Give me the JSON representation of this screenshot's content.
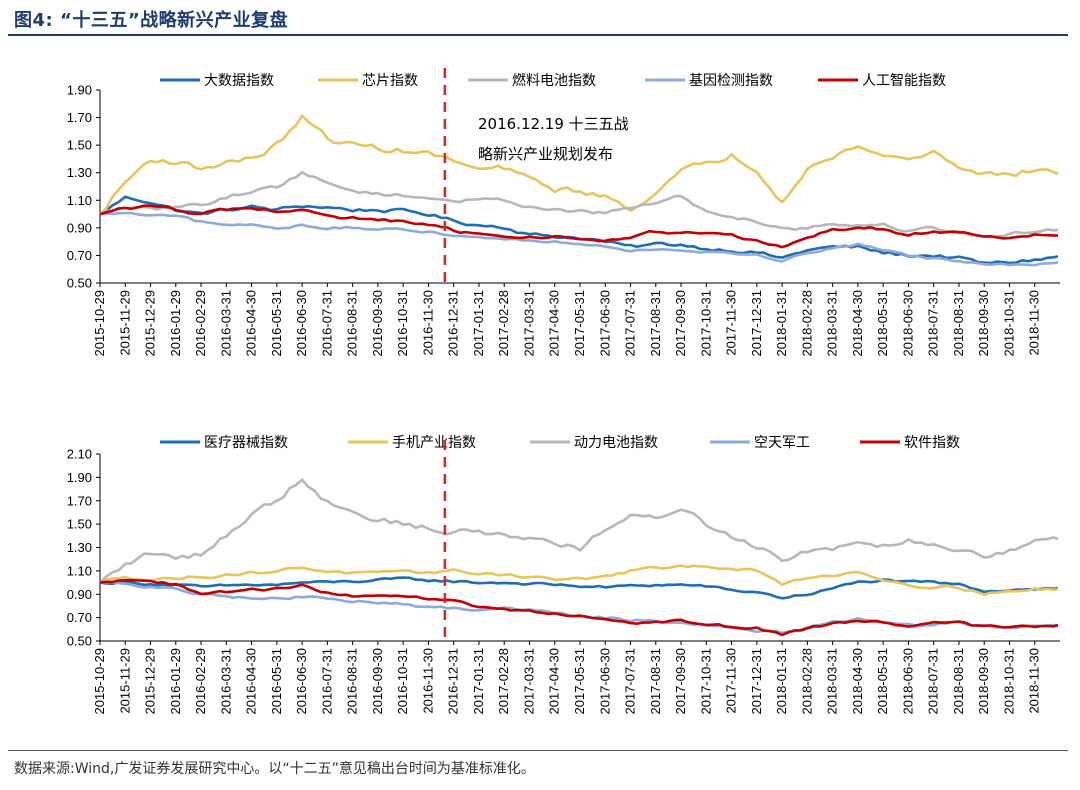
{
  "figure": {
    "title": "图4: “十三五”战略新兴产业复盘",
    "source": "数据来源:Wind,广发证券发展研究中心。以“十二五”意见稿出台时间为基准标准化。"
  },
  "colors": {
    "blue": "#1f6db5",
    "yellow": "#e6c65c",
    "gray": "#b7b7b7",
    "lightblue": "#8eaadb",
    "red": "#c00000",
    "marker": "#e8211d",
    "title": "#1f3c6e"
  },
  "chart_data": [
    {
      "type": "line",
      "title": "",
      "xlabel": "",
      "ylabel": "",
      "ylim": [
        0.5,
        1.9
      ],
      "yticks": [
        "1.90",
        "1.70",
        "1.50",
        "1.30",
        "1.10",
        "0.90",
        "0.70",
        "0.50"
      ],
      "x_ticks": [
        "2015-10-29",
        "2015-11-29",
        "2015-12-29",
        "2016-01-29",
        "2016-02-29",
        "2016-03-31",
        "2016-04-30",
        "2016-05-31",
        "2016-06-30",
        "2016-07-31",
        "2016-08-31",
        "2016-09-30",
        "2016-10-31",
        "2016-11-30",
        "2016-12-31",
        "2017-01-31",
        "2017-02-28",
        "2017-03-31",
        "2017-04-30",
        "2017-05-31",
        "2017-06-30",
        "2017-07-31",
        "2017-08-31",
        "2017-09-30",
        "2017-10-31",
        "2017-11-30",
        "2017-12-31",
        "2018-01-31",
        "2018-02-28",
        "2018-03-31",
        "2018-04-30",
        "2018-05-31",
        "2018-06-30",
        "2018-07-31",
        "2018-08-31",
        "2018-09-30",
        "2018-10-31",
        "2018-11-30"
      ],
      "legend_position": "top",
      "annotation": {
        "date_index": 13.65,
        "lines": [
          "2016.12.19 十三五战",
          "略新兴产业规划发布"
        ]
      },
      "series": [
        {
          "name": "大数据指数",
          "color": "#1f6db5",
          "noise": 0.012,
          "values": [
            1.0,
            1.12,
            1.09,
            1.03,
            1.0,
            1.03,
            1.05,
            1.03,
            1.06,
            1.05,
            1.03,
            1.03,
            1.02,
            1.0,
            0.95,
            0.92,
            0.91,
            0.85,
            0.84,
            0.83,
            0.8,
            0.76,
            0.78,
            0.78,
            0.75,
            0.74,
            0.72,
            0.68,
            0.74,
            0.76,
            0.76,
            0.72,
            0.7,
            0.7,
            0.68,
            0.64,
            0.65,
            0.67,
            0.69
          ]
        },
        {
          "name": "芯片指数",
          "color": "#e6c65c",
          "noise": 0.02,
          "values": [
            1.0,
            1.23,
            1.4,
            1.38,
            1.33,
            1.38,
            1.4,
            1.5,
            1.7,
            1.55,
            1.5,
            1.48,
            1.46,
            1.44,
            1.38,
            1.32,
            1.33,
            1.25,
            1.18,
            1.17,
            1.12,
            1.05,
            1.15,
            1.3,
            1.37,
            1.43,
            1.33,
            1.1,
            1.35,
            1.4,
            1.5,
            1.42,
            1.4,
            1.45,
            1.35,
            1.3,
            1.28,
            1.32,
            1.3
          ]
        },
        {
          "name": "燃料电池指数",
          "color": "#b7b7b7",
          "noise": 0.012,
          "values": [
            1.0,
            1.05,
            1.03,
            1.05,
            1.07,
            1.12,
            1.17,
            1.2,
            1.3,
            1.22,
            1.17,
            1.15,
            1.13,
            1.12,
            1.1,
            1.1,
            1.1,
            1.06,
            1.03,
            1.02,
            1.0,
            1.05,
            1.08,
            1.13,
            1.02,
            0.98,
            0.95,
            0.9,
            0.9,
            0.93,
            0.92,
            0.92,
            0.88,
            0.9,
            0.87,
            0.83,
            0.85,
            0.88,
            0.9
          ]
        },
        {
          "name": "基因检测指数",
          "color": "#8eaadb",
          "noise": 0.008,
          "values": [
            1.0,
            1.0,
            0.99,
            0.98,
            0.94,
            0.92,
            0.92,
            0.9,
            0.92,
            0.9,
            0.9,
            0.89,
            0.88,
            0.87,
            0.85,
            0.83,
            0.82,
            0.81,
            0.8,
            0.79,
            0.77,
            0.74,
            0.75,
            0.74,
            0.73,
            0.72,
            0.7,
            0.66,
            0.72,
            0.76,
            0.78,
            0.74,
            0.7,
            0.68,
            0.66,
            0.63,
            0.63,
            0.64,
            0.64
          ]
        },
        {
          "name": "人工智能指数",
          "color": "#c00000",
          "noise": 0.01,
          "values": [
            1.0,
            1.04,
            1.06,
            1.03,
            1.0,
            1.03,
            1.04,
            1.02,
            1.03,
            0.98,
            0.97,
            0.96,
            0.94,
            0.92,
            0.88,
            0.85,
            0.84,
            0.84,
            0.84,
            0.81,
            0.8,
            0.83,
            0.87,
            0.86,
            0.86,
            0.84,
            0.8,
            0.76,
            0.84,
            0.88,
            0.91,
            0.89,
            0.85,
            0.88,
            0.86,
            0.83,
            0.83,
            0.85,
            0.84
          ]
        }
      ]
    },
    {
      "type": "line",
      "title": "",
      "xlabel": "",
      "ylabel": "",
      "ylim": [
        0.5,
        2.1
      ],
      "yticks": [
        "2.10",
        "1.90",
        "1.70",
        "1.50",
        "1.30",
        "1.10",
        "0.90",
        "0.70",
        "0.50"
      ],
      "x_ticks": [
        "2015-10-29",
        "2015-11-29",
        "2015-12-29",
        "2016-01-29",
        "2016-02-29",
        "2016-03-31",
        "2016-04-30",
        "2016-05-31",
        "2016-06-30",
        "2016-07-31",
        "2016-08-31",
        "2016-09-30",
        "2016-10-31",
        "2016-11-30",
        "2016-12-31",
        "2017-01-31",
        "2017-02-28",
        "2017-03-31",
        "2017-04-30",
        "2017-05-31",
        "2017-06-30",
        "2017-07-31",
        "2017-08-31",
        "2017-09-30",
        "2017-10-31",
        "2017-11-30",
        "2017-12-31",
        "2018-01-31",
        "2018-02-28",
        "2018-03-31",
        "2018-04-30",
        "2018-05-31",
        "2018-06-30",
        "2018-07-31",
        "2018-08-31",
        "2018-09-30",
        "2018-10-31",
        "2018-11-30"
      ],
      "legend_position": "top",
      "annotation": {
        "date_index": 13.65,
        "lines": []
      },
      "series": [
        {
          "name": "医疗器械指数",
          "color": "#1f6db5",
          "noise": 0.01,
          "values": [
            1.0,
            1.0,
            0.99,
            0.98,
            0.96,
            0.97,
            0.98,
            0.98,
            1.0,
            1.0,
            1.01,
            1.02,
            1.03,
            1.02,
            1.01,
            1.0,
            1.0,
            0.99,
            0.98,
            0.97,
            0.96,
            0.97,
            0.98,
            0.98,
            0.97,
            0.93,
            0.92,
            0.87,
            0.9,
            0.95,
            1.0,
            1.02,
            1.0,
            1.0,
            0.98,
            0.93,
            0.94,
            0.95,
            0.95
          ]
        },
        {
          "name": "手机产业指数",
          "color": "#e6c65c",
          "noise": 0.012,
          "values": [
            1.0,
            1.06,
            1.02,
            1.04,
            1.05,
            1.07,
            1.08,
            1.1,
            1.13,
            1.1,
            1.08,
            1.08,
            1.08,
            1.09,
            1.1,
            1.08,
            1.07,
            1.05,
            1.03,
            1.03,
            1.05,
            1.1,
            1.12,
            1.13,
            1.15,
            1.12,
            1.1,
            0.98,
            1.05,
            1.06,
            1.1,
            1.03,
            0.98,
            0.97,
            0.96,
            0.91,
            0.92,
            0.94,
            0.95
          ]
        },
        {
          "name": "动力电池指数",
          "color": "#b7b7b7",
          "noise": 0.025,
          "values": [
            1.0,
            1.15,
            1.25,
            1.2,
            1.25,
            1.4,
            1.6,
            1.7,
            1.9,
            1.7,
            1.6,
            1.55,
            1.5,
            1.47,
            1.42,
            1.45,
            1.4,
            1.38,
            1.35,
            1.3,
            1.45,
            1.55,
            1.55,
            1.65,
            1.5,
            1.4,
            1.32,
            1.2,
            1.28,
            1.3,
            1.35,
            1.33,
            1.38,
            1.32,
            1.3,
            1.25,
            1.27,
            1.35,
            1.37
          ]
        },
        {
          "name": "空天军工",
          "color": "#8eaadb",
          "noise": 0.01,
          "values": [
            1.0,
            0.99,
            0.96,
            0.94,
            0.9,
            0.88,
            0.87,
            0.86,
            0.88,
            0.86,
            0.84,
            0.83,
            0.81,
            0.79,
            0.78,
            0.77,
            0.78,
            0.77,
            0.75,
            0.72,
            0.7,
            0.68,
            0.68,
            0.66,
            0.64,
            0.61,
            0.59,
            0.57,
            0.61,
            0.66,
            0.69,
            0.66,
            0.63,
            0.64,
            0.66,
            0.62,
            0.62,
            0.63,
            0.64
          ]
        },
        {
          "name": "软件指数",
          "color": "#c00000",
          "noise": 0.01,
          "values": [
            1.0,
            1.03,
            1.01,
            0.98,
            0.9,
            0.92,
            0.94,
            0.95,
            0.97,
            0.91,
            0.89,
            0.88,
            0.87,
            0.86,
            0.84,
            0.79,
            0.77,
            0.76,
            0.73,
            0.71,
            0.68,
            0.66,
            0.66,
            0.67,
            0.65,
            0.62,
            0.61,
            0.56,
            0.6,
            0.65,
            0.68,
            0.66,
            0.63,
            0.65,
            0.66,
            0.62,
            0.62,
            0.62,
            0.63
          ]
        }
      ]
    }
  ]
}
